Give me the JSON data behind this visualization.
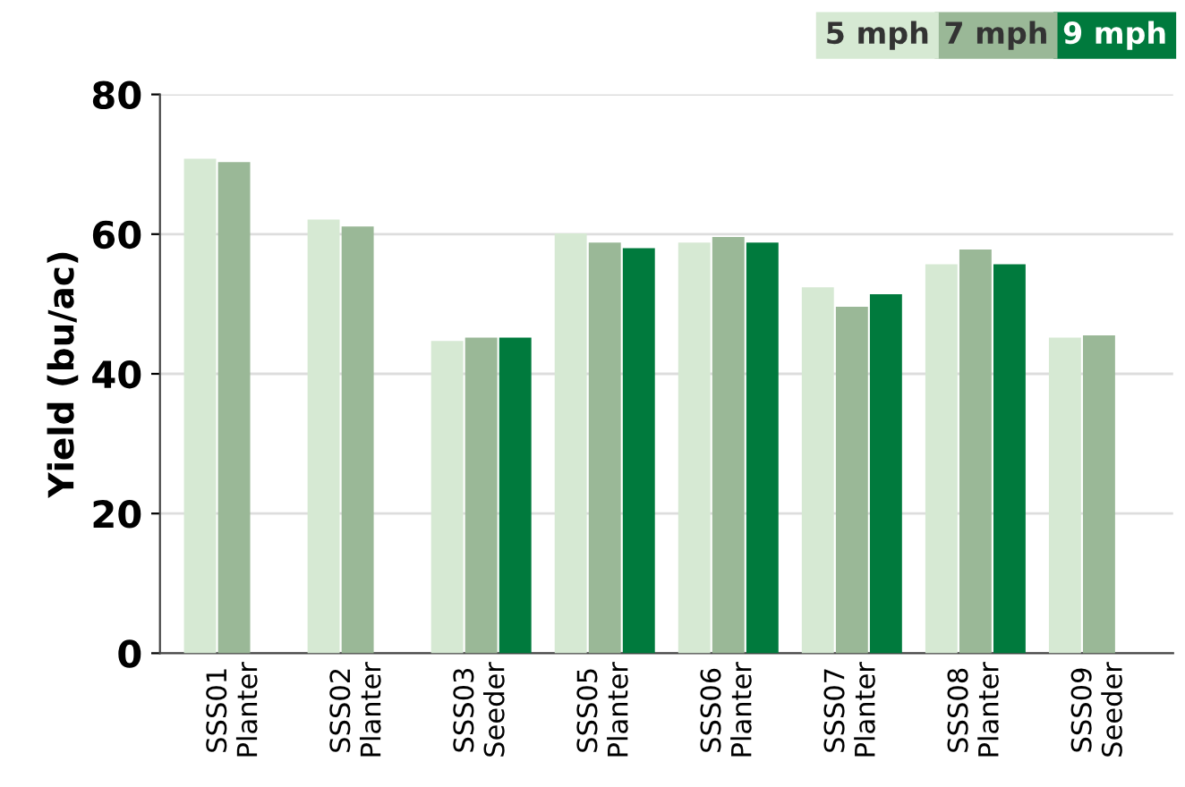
{
  "chart_data": {
    "type": "bar",
    "ylabel": "Yield (bu/ac)",
    "categories": [
      "SSS01\nPlanter",
      "SSS02\nPlanter",
      "SSS03\nSeeder",
      "SSS05\nPlanter",
      "SSS06\nPlanter",
      "SSS07\nPlanter",
      "SSS08\nPlanter",
      "SSS09\nSeeder"
    ],
    "series": [
      {
        "name": "5 mph",
        "color": "#d6e9d3",
        "values": [
          70.8,
          62.1,
          44.7,
          60.1,
          58.8,
          52.4,
          55.7,
          45.2
        ]
      },
      {
        "name": "7 mph",
        "color": "#9ab897",
        "values": [
          70.3,
          61.1,
          45.2,
          58.8,
          59.6,
          49.6,
          57.8,
          45.5
        ]
      },
      {
        "name": "9 mph",
        "color": "#007a3d",
        "values": [
          null,
          null,
          45.2,
          58.0,
          58.8,
          51.4,
          55.7,
          null
        ]
      }
    ],
    "ylim": [
      0,
      80
    ],
    "yticks": [
      0,
      20,
      40,
      60,
      80
    ],
    "grid": "y",
    "legend": "top right"
  }
}
